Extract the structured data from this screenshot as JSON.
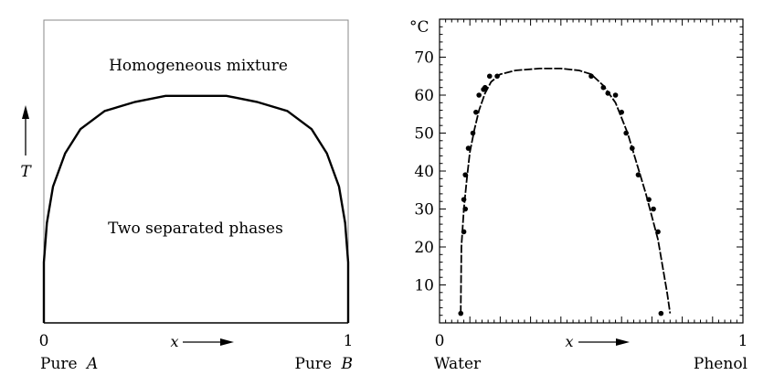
{
  "chart_data": [
    {
      "type": "line",
      "title": "",
      "annotations": [
        "Homogeneous mixture",
        "Two separated phases"
      ],
      "ylabel": "T",
      "xlabel": "x",
      "x_ticks": [
        "0",
        "1"
      ],
      "x_end_labels": {
        "left_prefix": "Pure",
        "left_var": "A",
        "right_prefix": "Pure",
        "right_var": "B"
      },
      "xlim": [
        0,
        1
      ],
      "ylim": [
        0,
        1
      ],
      "series": [
        {
          "x": [
            0,
            0.0,
            0.01,
            0.03,
            0.07,
            0.12,
            0.2,
            0.3,
            0.4,
            0.5,
            0.6,
            0.7,
            0.8,
            0.88,
            0.93,
            0.97,
            0.99,
            1.0,
            1.0
          ],
          "y": [
            0,
            0.2,
            0.33,
            0.45,
            0.56,
            0.64,
            0.7,
            0.73,
            0.75,
            0.75,
            0.75,
            0.73,
            0.7,
            0.64,
            0.56,
            0.45,
            0.33,
            0.2,
            0
          ]
        }
      ]
    },
    {
      "type": "scatter",
      "title": "",
      "ylabel": "°C",
      "xlabel": "x",
      "x_ticks": [
        "0",
        "1"
      ],
      "x_end_labels": {
        "left": "Water",
        "right": "Phenol"
      },
      "y_ticks": [
        10,
        20,
        30,
        40,
        50,
        60,
        70
      ],
      "xlim": [
        0,
        1
      ],
      "ylim": [
        0,
        80
      ],
      "series": [
        {
          "points_x": [
            0.07,
            0.08,
            0.085,
            0.08,
            0.085,
            0.095,
            0.11,
            0.12,
            0.13,
            0.145,
            0.15,
            0.165,
            0.19,
            0.5,
            0.54,
            0.555,
            0.58,
            0.6,
            0.615,
            0.635,
            0.655,
            0.69,
            0.705,
            0.72,
            0.73,
            0.76
          ],
          "points_y": [
            2.5,
            24,
            30,
            32.5,
            39,
            46,
            50,
            55.5,
            60,
            61.5,
            62,
            65,
            65,
            65,
            62,
            60.5,
            60,
            55.5,
            50,
            46,
            39,
            32.5,
            30,
            24,
            2.5,
            2.5
          ],
          "curve_x": [
            0.07,
            0.072,
            0.08,
            0.09,
            0.1,
            0.115,
            0.13,
            0.15,
            0.17,
            0.2,
            0.25,
            0.33,
            0.4,
            0.46,
            0.5,
            0.54,
            0.58,
            0.62,
            0.65,
            0.68,
            0.7,
            0.72,
            0.735,
            0.75,
            0.76
          ],
          "curve_y": [
            2.5,
            20,
            30,
            38,
            45,
            51,
            56,
            60.5,
            63.5,
            65.5,
            66.5,
            67,
            67,
            66.5,
            65.5,
            62.5,
            58,
            50,
            42,
            34,
            28,
            22,
            15,
            8,
            2.5
          ]
        }
      ]
    }
  ]
}
